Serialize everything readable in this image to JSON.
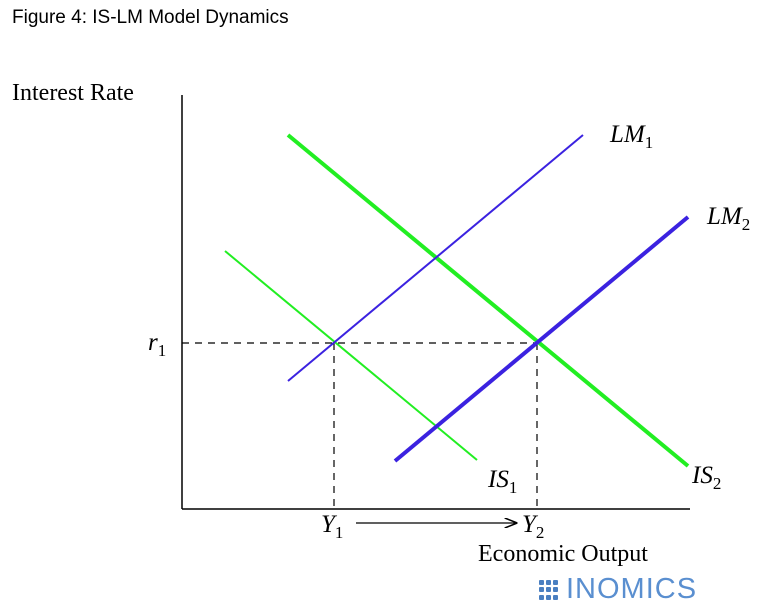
{
  "figure": {
    "title": "Figure 4: IS-LM Model Dynamics",
    "y_axis_label": "Interest Rate",
    "x_axis_label": "Economic Output",
    "r1_label_base": "r",
    "r1_label_sub": "1",
    "y1_label_base": "Y",
    "y1_label_sub": "1",
    "y2_label_base": "Y",
    "y2_label_sub": "2"
  },
  "curves": {
    "lm1": {
      "base": "LM",
      "sub": "1",
      "color": "#3b22e0"
    },
    "lm2": {
      "base": "LM",
      "sub": "2",
      "color": "#3b22e0"
    },
    "is1": {
      "base": "IS",
      "sub": "1",
      "color": "#22ee22"
    },
    "is2": {
      "base": "IS",
      "sub": "2",
      "color": "#22ee22"
    }
  },
  "logo": {
    "text": "INOMICS",
    "color": "#5a8fd0"
  }
}
